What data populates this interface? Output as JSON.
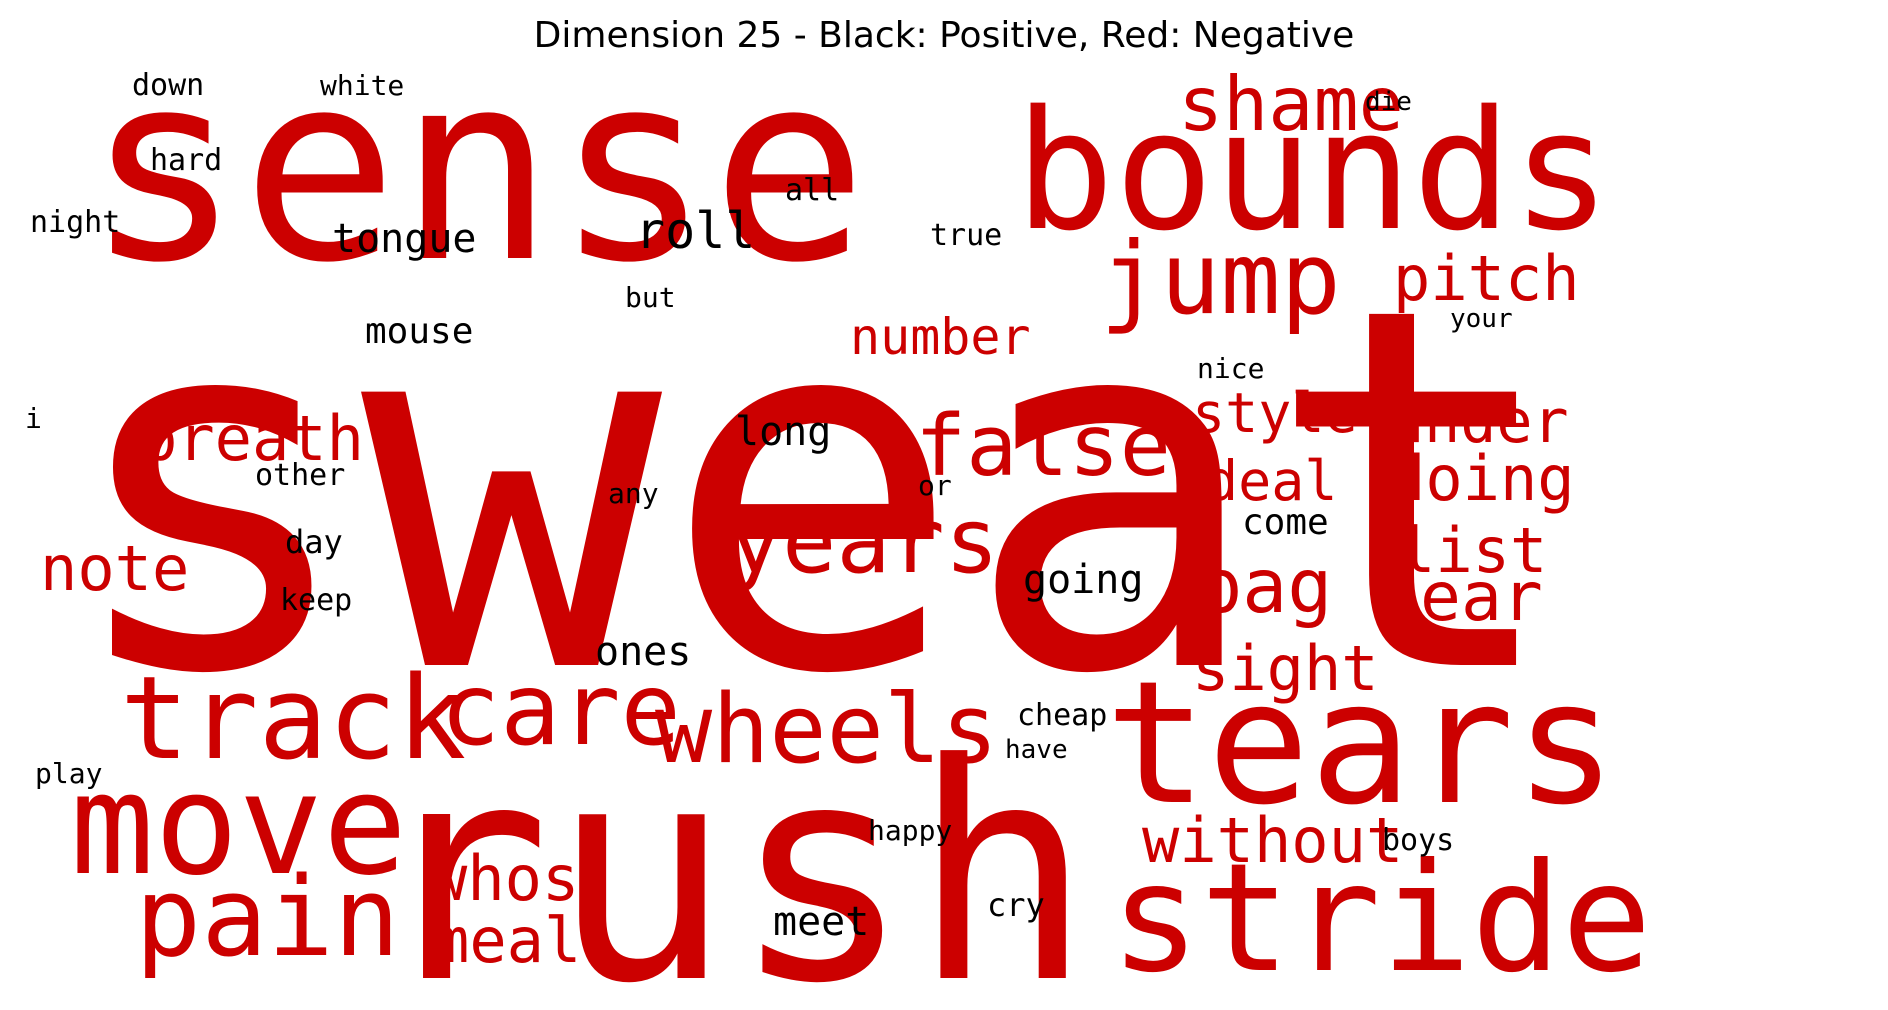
{
  "title": "Dimension 25 - Black: Positive, Red: Negative",
  "colors": {
    "positive": "#000000",
    "negative": "#cc0000"
  },
  "words": [
    {
      "text": "sweat",
      "polarity": "negative"
    },
    {
      "text": "sense",
      "polarity": "negative"
    },
    {
      "text": "rush",
      "polarity": "negative"
    },
    {
      "text": "bounds",
      "polarity": "negative"
    },
    {
      "text": "tears",
      "polarity": "negative"
    },
    {
      "text": "stride",
      "polarity": "negative"
    },
    {
      "text": "move",
      "polarity": "negative"
    },
    {
      "text": "track",
      "polarity": "negative"
    },
    {
      "text": "pain",
      "polarity": "negative"
    },
    {
      "text": "jump",
      "polarity": "negative"
    },
    {
      "text": "care",
      "polarity": "negative"
    },
    {
      "text": "wheels",
      "polarity": "negative"
    },
    {
      "text": "years",
      "polarity": "negative"
    },
    {
      "text": "shame",
      "polarity": "negative"
    },
    {
      "text": "false",
      "polarity": "negative"
    },
    {
      "text": "breath",
      "polarity": "negative"
    },
    {
      "text": "note",
      "polarity": "negative"
    },
    {
      "text": "bag",
      "polarity": "negative"
    },
    {
      "text": "whos",
      "polarity": "negative"
    },
    {
      "text": "meal",
      "polarity": "negative"
    },
    {
      "text": "without",
      "polarity": "negative"
    },
    {
      "text": "sight",
      "polarity": "negative"
    },
    {
      "text": "pitch",
      "polarity": "negative"
    },
    {
      "text": "under",
      "polarity": "negative"
    },
    {
      "text": "doing",
      "polarity": "negative"
    },
    {
      "text": "list",
      "polarity": "negative"
    },
    {
      "text": "ear",
      "polarity": "negative"
    },
    {
      "text": "deal",
      "polarity": "negative"
    },
    {
      "text": "style",
      "polarity": "negative"
    },
    {
      "text": "number",
      "polarity": "negative"
    },
    {
      "text": "roll",
      "polarity": "positive"
    },
    {
      "text": "tongue",
      "polarity": "positive"
    },
    {
      "text": "long",
      "polarity": "positive"
    },
    {
      "text": "meet",
      "polarity": "positive"
    },
    {
      "text": "ones",
      "polarity": "positive"
    },
    {
      "text": "going",
      "polarity": "positive"
    },
    {
      "text": "come",
      "polarity": "positive"
    },
    {
      "text": "mouse",
      "polarity": "positive"
    },
    {
      "text": "down",
      "polarity": "positive"
    },
    {
      "text": "white",
      "polarity": "positive"
    },
    {
      "text": "hard",
      "polarity": "positive"
    },
    {
      "text": "night",
      "polarity": "positive"
    },
    {
      "text": "all",
      "polarity": "positive"
    },
    {
      "text": "true",
      "polarity": "positive"
    },
    {
      "text": "but",
      "polarity": "positive"
    },
    {
      "text": "die",
      "polarity": "positive"
    },
    {
      "text": "your",
      "polarity": "positive"
    },
    {
      "text": "nice",
      "polarity": "positive"
    },
    {
      "text": "i",
      "polarity": "positive"
    },
    {
      "text": "other",
      "polarity": "positive"
    },
    {
      "text": "any",
      "polarity": "positive"
    },
    {
      "text": "or",
      "polarity": "positive"
    },
    {
      "text": "day",
      "polarity": "positive"
    },
    {
      "text": "keep",
      "polarity": "positive"
    },
    {
      "text": "cheap",
      "polarity": "positive"
    },
    {
      "text": "have",
      "polarity": "positive"
    },
    {
      "text": "play",
      "polarity": "positive"
    },
    {
      "text": "happy",
      "polarity": "positive"
    },
    {
      "text": "boys",
      "polarity": "positive"
    },
    {
      "text": "cry",
      "polarity": "positive"
    }
  ]
}
